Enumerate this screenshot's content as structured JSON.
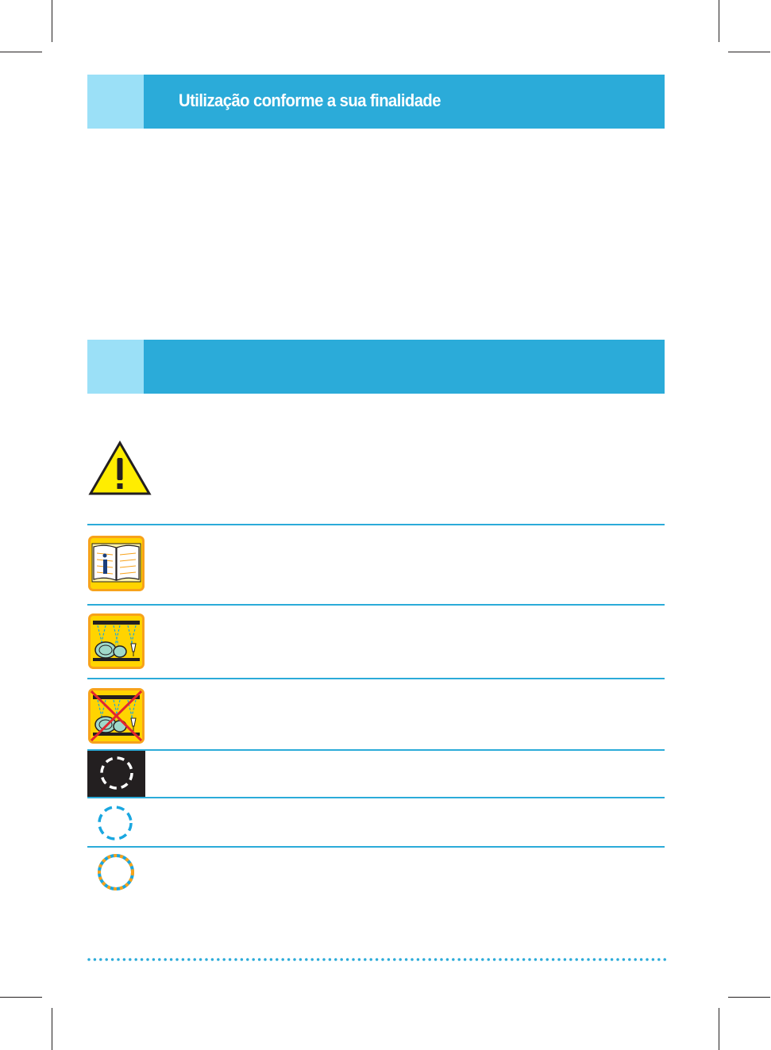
{
  "section_1": {
    "title": "Utilização conforme a sua finalidade"
  },
  "section_2": {
    "title": ""
  },
  "icons": [
    "warning-triangle-icon",
    "manual-book-info-icon",
    "dishwasher-rack-icon",
    "dishwasher-rack-not-allowed-icon",
    "dashed-circle-on-dark-icon",
    "dashed-blue-circle-icon",
    "dotted-orange-blue-circle-icon"
  ],
  "colors": {
    "banner": "#2babd9",
    "banner_tab": "#9be0f7",
    "warning_yellow": "#ffed00",
    "icon_orange": "#f7a21b",
    "icon_yellow": "#ffd400",
    "accent_blue": "#1aa7e0",
    "dark_tile": "#231f20"
  }
}
